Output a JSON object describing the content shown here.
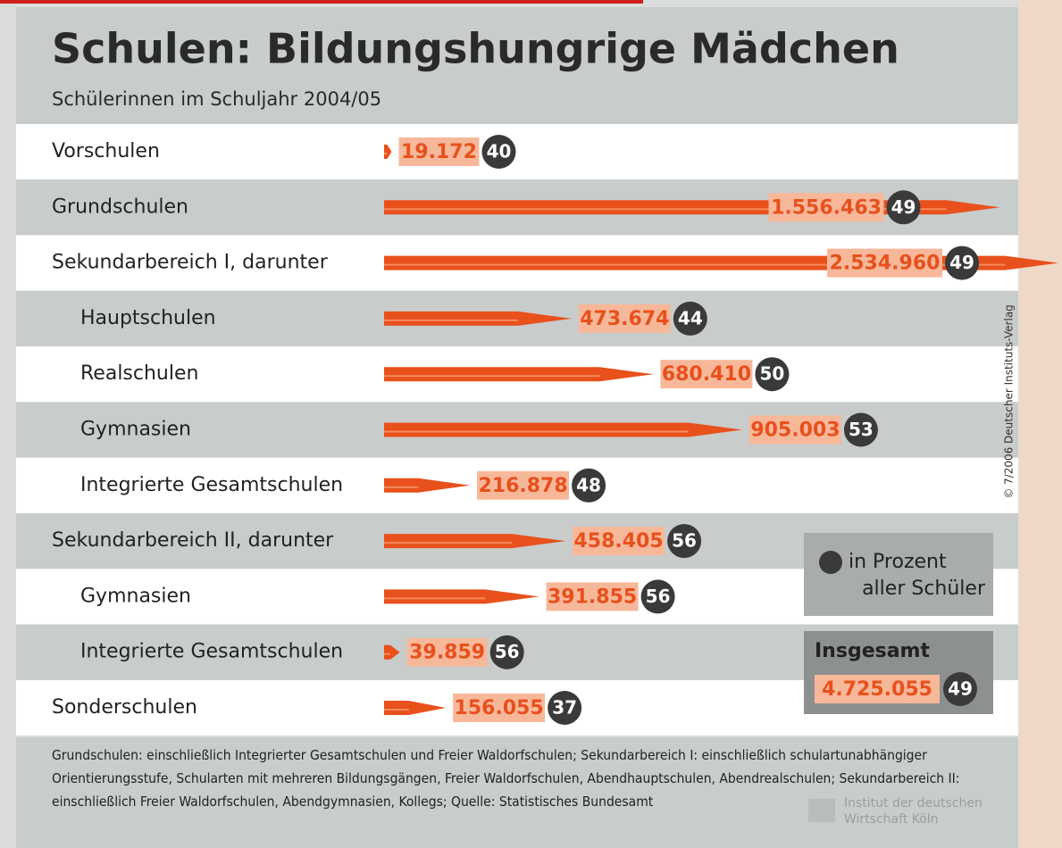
{
  "chart_data": {
    "type": "bar",
    "title": "Schulen: Bildungshungrige Mädchen",
    "subtitle": "Schülerinnen im Schuljahr 2004/05",
    "categories": [
      "Vorschulen",
      "Grundschulen",
      "Sekundarbereich I, darunter",
      "Hauptschulen",
      "Realschulen",
      "Gymnasien",
      "Integrierte Gesamtschulen",
      "Sekundarbereich II, darunter",
      "Gymnasien",
      "Integrierte Gesamtschulen",
      "Sonderschulen"
    ],
    "values": [
      19172,
      1556463,
      2534960,
      473674,
      680410,
      905003,
      216878,
      458405,
      391855,
      39859,
      156055
    ],
    "value_labels": [
      "19.172",
      "1.556.463",
      "2.534.960",
      "473.674",
      "680.410",
      "905.003",
      "216.878",
      "458.405",
      "391.855",
      "39.859",
      "156.055"
    ],
    "color": "#e8501c",
    "shares": {
      "name": "in Prozent aller Schüler",
      "values": [
        40,
        49,
        49,
        44,
        50,
        53,
        48,
        56,
        56,
        56,
        37
      ]
    },
    "total": {
      "label": "Insgesamt",
      "value": 4725055,
      "value_label": "4.725.055",
      "share": 49
    },
    "footnote": "Grundschulen: einschließlich Integrierter Gesamtschulen und Freier Waldorfschulen; Sekundarbereich I: einschließlich schulartunabhängiger Orientierungsstufe, Schularten mit mehreren Bildungsgängen, Freier Waldorfschulen, Abendhauptschulen, Abendrealschulen; Sekundarbereich II: einschließlich Freier Waldorfschulen, Abendgymnasien, Kollegs; Quelle: Statistisches Bundesamt",
    "credit": "© 7/2006 Deutscher Instituts-Verlag",
    "logo": "Institut der deutschen Wirtschaft Köln"
  }
}
